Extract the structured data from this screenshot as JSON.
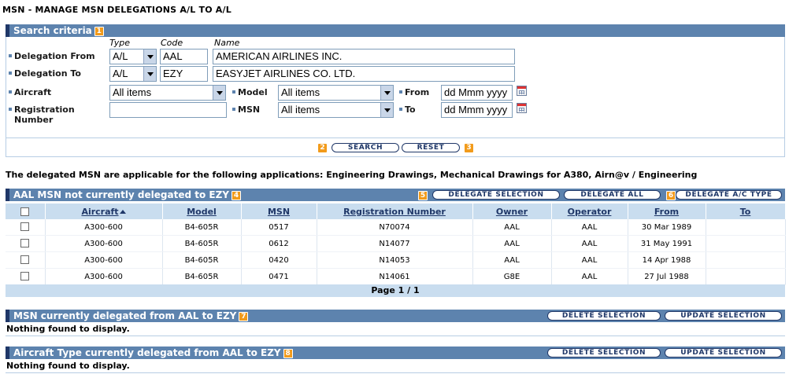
{
  "page_title": "MSN - MANAGE MSN DELEGATIONS A/L TO A/L",
  "search": {
    "title": "Search criteria",
    "badge": "1",
    "col_type": "Type",
    "col_code": "Code",
    "col_name": "Name",
    "delegation_from": {
      "label": "Delegation From",
      "type": "A/L",
      "code": "AAL",
      "name": "AMERICAN AIRLINES INC."
    },
    "delegation_to": {
      "label": "Delegation To",
      "type": "A/L",
      "code": "EZY",
      "name": "EASYJET AIRLINES CO. LTD."
    },
    "aircraft": {
      "label": "Aircraft",
      "value": "All items"
    },
    "model": {
      "label": "Model",
      "value": "All items"
    },
    "from": {
      "label": "From",
      "value": "dd Mmm yyyy"
    },
    "registration": {
      "label": "Registration Number",
      "value": ""
    },
    "msn": {
      "label": "MSN",
      "value": "All items"
    },
    "to": {
      "label": "To",
      "value": "dd Mmm yyyy"
    },
    "search_button": "SEARCH",
    "search_badge": "2",
    "reset_button": "RESET",
    "reset_badge": "3"
  },
  "info_text": "The delegated MSN are applicable for the following applications: Engineering Drawings, Mechanical Drawings for A380, Airn@v / Engineering",
  "not_delegated": {
    "title": "AAL MSN not currently delegated to EZY",
    "badge": "4",
    "delegate_selection_badge": "5",
    "delegate_selection": "DELEGATE SELECTION",
    "delegate_all": "DELEGATE ALL",
    "delegate_type_badge": "6",
    "delegate_type": "DELEGATE A/C TYPE",
    "columns": [
      "Aircraft",
      "Model",
      "MSN",
      "Registration Number",
      "Owner",
      "Operator",
      "From",
      "To"
    ],
    "rows": [
      {
        "aircraft": "A300-600",
        "model": "B4-605R",
        "msn": "0517",
        "registration": "N70074",
        "owner": "AAL",
        "operator": "AAL",
        "from": "30 Mar 1989",
        "to": ""
      },
      {
        "aircraft": "A300-600",
        "model": "B4-605R",
        "msn": "0612",
        "registration": "N14077",
        "owner": "AAL",
        "operator": "AAL",
        "from": "31 May 1991",
        "to": ""
      },
      {
        "aircraft": "A300-600",
        "model": "B4-605R",
        "msn": "0420",
        "registration": "N14053",
        "owner": "AAL",
        "operator": "AAL",
        "from": "14 Apr 1988",
        "to": ""
      },
      {
        "aircraft": "A300-600",
        "model": "B4-605R",
        "msn": "0471",
        "registration": "N14061",
        "owner": "G8E",
        "operator": "AAL",
        "from": "27 Jul 1988",
        "to": ""
      }
    ],
    "pagination": "Page 1 / 1"
  },
  "msn_delegated": {
    "title": "MSN currently delegated from AAL to EZY",
    "badge": "7",
    "delete_selection": "DELETE SELECTION",
    "update_selection": "UPDATE SELECTION",
    "empty_text": "Nothing found to display."
  },
  "type_delegated": {
    "title": "Aircraft Type currently delegated from AAL to EZY",
    "badge": "8",
    "delete_selection": "DELETE SELECTION",
    "update_selection": "UPDATE SELECTION",
    "empty_text": "Nothing found to display."
  },
  "colors": {
    "section_bar": "#5d83ae",
    "header_row": "#c9ddef",
    "badge": "#f29b1b",
    "button_border": "#1f3768"
  }
}
